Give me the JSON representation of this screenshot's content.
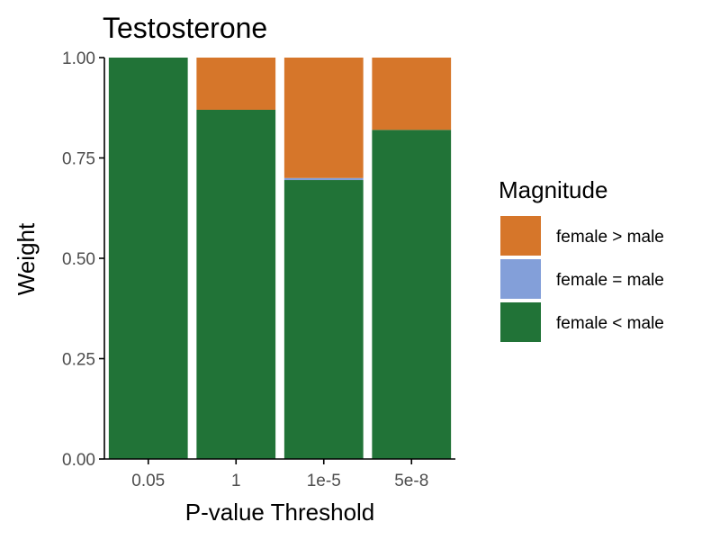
{
  "chart_data": {
    "type": "bar",
    "stacked": true,
    "title": "Testosterone",
    "xlabel": "P-value Threshold",
    "ylabel": "Weight",
    "categories": [
      "0.05",
      "1",
      "1e-5",
      "5e-8"
    ],
    "ylim": [
      0,
      1
    ],
    "yticks": [
      "0.00",
      "0.25",
      "0.50",
      "0.75",
      "1.00"
    ],
    "grid": false,
    "legend_title": "Magnitude",
    "legend_position": "right",
    "series": [
      {
        "name": "female < male",
        "color": "#217337",
        "values": [
          1.0,
          0.87,
          0.695,
          0.82
        ]
      },
      {
        "name": "female = male",
        "color": "#839fd9",
        "values": [
          0.0,
          0.0,
          0.005,
          0.0
        ]
      },
      {
        "name": "female > male",
        "color": "#d6762a",
        "values": [
          0.0,
          0.13,
          0.3,
          0.18
        ]
      }
    ],
    "legend_order": [
      "female > male",
      "female = male",
      "female < male"
    ]
  }
}
